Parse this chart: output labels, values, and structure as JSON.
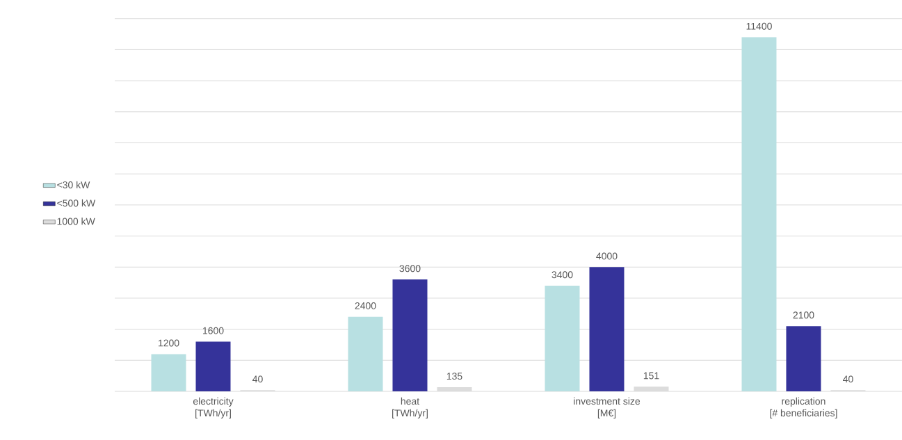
{
  "chart_data": {
    "type": "bar",
    "categories": [
      "electricity\n[TWh/yr]",
      "heat\n[TWh/yr]",
      "investment size\n[M€]",
      "replication\n[# beneficiaries]"
    ],
    "series": [
      {
        "name": "<30 kW",
        "color": "#b8e0e2",
        "values": [
          1200,
          2400,
          3400,
          11400
        ]
      },
      {
        "name": "<500 kW",
        "color": "#35339a",
        "values": [
          1600,
          3600,
          4000,
          2100
        ]
      },
      {
        "name": "1000 kW",
        "color": "#dcdcdc",
        "values": [
          40,
          135,
          151,
          40
        ]
      }
    ],
    "grid": "y",
    "legend": "left",
    "tick_labels": "x",
    "data_labels": true
  }
}
